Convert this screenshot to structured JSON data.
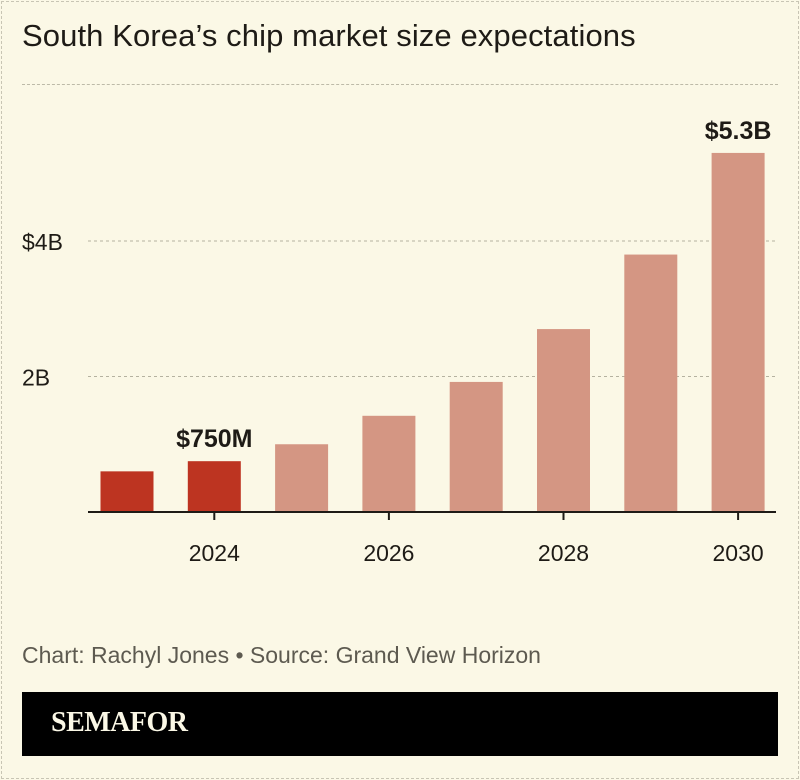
{
  "title": "South Korea’s chip market size expectations",
  "source": "Chart: Rachyl Jones • Source: Grand View Horizon",
  "brand": "SEMAFOR",
  "colors": {
    "highlight": "#bd3421",
    "projection": "#d49683",
    "background": "#fbf8e6"
  },
  "chart_data": {
    "type": "bar",
    "title": "South Korea’s chip market size expectations",
    "x": [
      2023,
      2024,
      2025,
      2026,
      2027,
      2028,
      2029,
      2030
    ],
    "values": [
      0.6,
      0.75,
      1.0,
      1.42,
      1.92,
      2.7,
      3.8,
      5.3
    ],
    "unit": "billion USD",
    "highlighted": [
      2023,
      2024
    ],
    "ylim": [
      0,
      5.3
    ],
    "yticks": [
      {
        "value": 2,
        "label": "2B"
      },
      {
        "value": 4,
        "label": "$4B"
      }
    ],
    "xticks": [
      {
        "value": 2024,
        "label": "2024"
      },
      {
        "value": 2026,
        "label": "2026"
      },
      {
        "value": 2028,
        "label": "2028"
      },
      {
        "value": 2030,
        "label": "2030"
      }
    ],
    "annotations": [
      {
        "x": 2024,
        "label": "$750M"
      },
      {
        "x": 2030,
        "label": "$5.3B"
      }
    ],
    "grid": "horizontal dashed",
    "legend": "none"
  }
}
